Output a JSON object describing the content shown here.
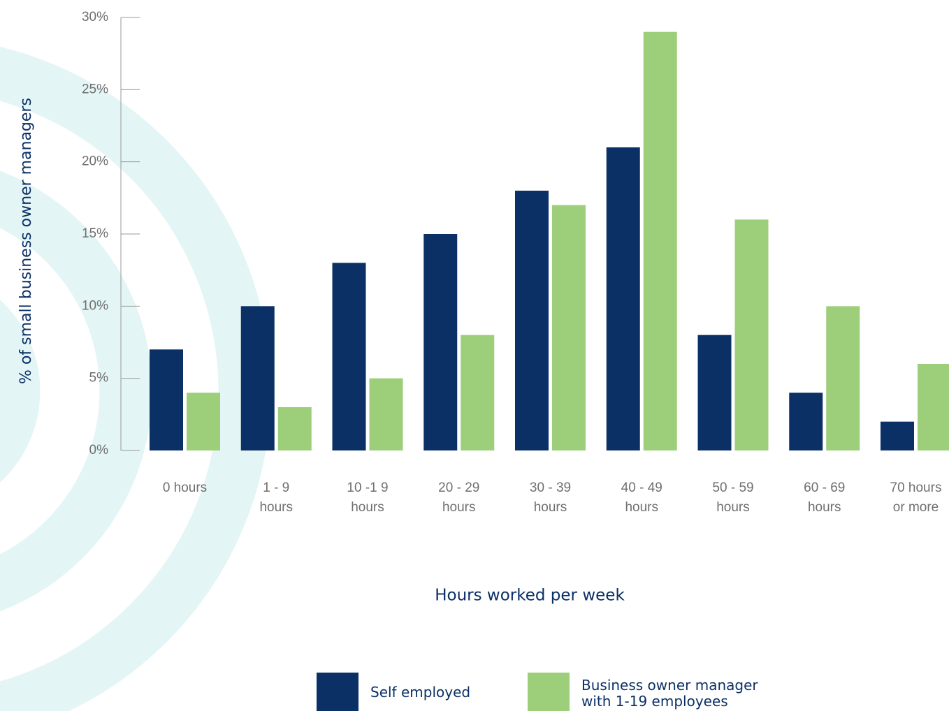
{
  "chart_data": {
    "type": "bar",
    "x_label": "Hours worked per week",
    "y_label": "% of small business owner managers",
    "categories": [
      "0 hours",
      "1 - 9 hours",
      "10 -1 9 hours",
      "20 - 29 hours",
      "30 - 39 hours",
      "40 - 49 hours",
      "50 - 59 hours",
      "60 - 69 hours",
      "70 hours or more"
    ],
    "series": [
      {
        "name": "Self employed",
        "color": "#0b3066",
        "values": [
          7,
          10,
          13,
          15,
          18,
          21,
          8,
          4,
          2
        ]
      },
      {
        "name": "Business owner manager with 1-19 employees",
        "color": "#9dcf7b",
        "values": [
          4,
          3,
          5,
          8,
          17,
          29,
          16,
          10,
          6
        ]
      }
    ],
    "ylim": [
      0,
      30
    ],
    "yticks": [
      {
        "value": 0,
        "label": "0%"
      },
      {
        "value": 5,
        "label": "5%"
      },
      {
        "value": 10,
        "label": "10%"
      },
      {
        "value": 15,
        "label": "15%"
      },
      {
        "value": 20,
        "label": "20%"
      },
      {
        "value": 25,
        "label": "25%"
      },
      {
        "value": 30,
        "label": "30%"
      }
    ]
  }
}
